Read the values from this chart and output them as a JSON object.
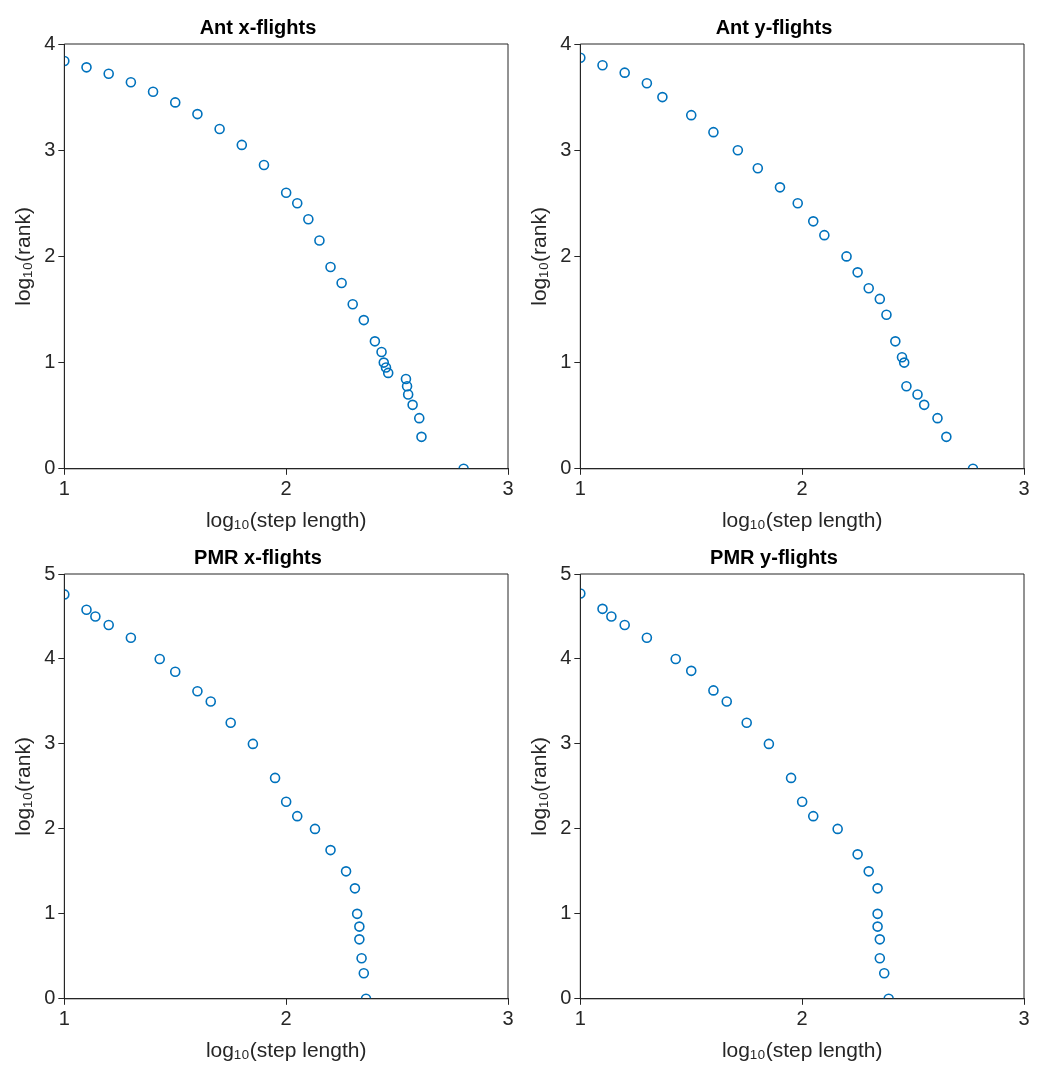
{
  "chart_data": [
    {
      "type": "scatter",
      "title": "Ant x-flights",
      "xlabel": "log₁₀(step length)",
      "ylabel": "log₁₀(rank)",
      "xlim": [
        1,
        3
      ],
      "xticks": [
        1,
        2,
        3
      ],
      "ylim": [
        0,
        4
      ],
      "yticks": [
        0,
        1,
        2,
        3,
        4
      ],
      "grid": false,
      "legend": false,
      "marker": "circle",
      "series": [
        {
          "color": "#0072bd",
          "x": [
            1.0,
            1.1,
            1.2,
            1.3,
            1.4,
            1.5,
            1.6,
            1.7,
            1.8,
            1.9,
            2.0,
            2.05,
            2.1,
            2.15,
            2.2,
            2.25,
            2.3,
            2.35,
            2.4,
            2.43,
            2.44,
            2.45,
            2.46,
            2.54,
            2.545,
            2.55,
            2.57,
            2.6,
            2.61,
            2.8
          ],
          "values": [
            3.84,
            3.78,
            3.72,
            3.64,
            3.55,
            3.45,
            3.34,
            3.2,
            3.05,
            2.86,
            2.6,
            2.5,
            2.35,
            2.15,
            1.9,
            1.75,
            1.55,
            1.4,
            1.2,
            1.1,
            1.0,
            0.954,
            0.903,
            0.845,
            0.778,
            0.699,
            0.602,
            0.477,
            0.301,
            0
          ]
        }
      ]
    },
    {
      "type": "scatter",
      "title": "Ant y-flights",
      "xlabel": "log₁₀(step length)",
      "ylabel": "log₁₀(rank)",
      "xlim": [
        1,
        3
      ],
      "xticks": [
        1,
        2,
        3
      ],
      "ylim": [
        0,
        4
      ],
      "yticks": [
        0,
        1,
        2,
        3,
        4
      ],
      "grid": false,
      "legend": false,
      "marker": "circle",
      "series": [
        {
          "color": "#0072bd",
          "x": [
            1.0,
            1.1,
            1.2,
            1.3,
            1.37,
            1.5,
            1.6,
            1.71,
            1.8,
            1.9,
            1.98,
            2.05,
            2.1,
            2.2,
            2.25,
            2.3,
            2.35,
            2.38,
            2.42,
            2.45,
            2.46,
            2.47,
            2.52,
            2.55,
            2.61,
            2.65,
            2.77
          ],
          "values": [
            3.87,
            3.8,
            3.73,
            3.63,
            3.5,
            3.33,
            3.17,
            3.0,
            2.83,
            2.65,
            2.5,
            2.33,
            2.2,
            2.0,
            1.85,
            1.7,
            1.6,
            1.45,
            1.2,
            1.05,
            1.0,
            0.778,
            0.699,
            0.602,
            0.477,
            0.301,
            0
          ]
        }
      ]
    },
    {
      "type": "scatter",
      "title": "PMR x-flights",
      "xlabel": "log₁₀(step length)",
      "ylabel": "log₁₀(rank)",
      "xlim": [
        1,
        3
      ],
      "xticks": [
        1,
        2,
        3
      ],
      "ylim": [
        0,
        5
      ],
      "yticks": [
        0,
        1,
        2,
        3,
        4,
        5
      ],
      "grid": false,
      "legend": false,
      "marker": "circle",
      "series": [
        {
          "color": "#0072bd",
          "x": [
            1.0,
            1.1,
            1.14,
            1.2,
            1.3,
            1.43,
            1.5,
            1.6,
            1.66,
            1.75,
            1.85,
            1.95,
            2.0,
            2.05,
            2.13,
            2.2,
            2.27,
            2.31,
            2.32,
            2.33,
            2.33,
            2.34,
            2.35,
            2.36
          ],
          "values": [
            4.76,
            4.58,
            4.5,
            4.4,
            4.25,
            4.0,
            3.85,
            3.62,
            3.5,
            3.25,
            3.0,
            2.6,
            2.32,
            2.15,
            2.0,
            1.75,
            1.5,
            1.3,
            1.0,
            0.85,
            0.7,
            0.477,
            0.301,
            0
          ]
        }
      ]
    },
    {
      "type": "scatter",
      "title": "PMR y-flights",
      "xlabel": "log₁₀(step length)",
      "ylabel": "log₁₀(rank)",
      "xlim": [
        1,
        3
      ],
      "xticks": [
        1,
        2,
        3
      ],
      "ylim": [
        0,
        5
      ],
      "yticks": [
        0,
        1,
        2,
        3,
        4,
        5
      ],
      "grid": false,
      "legend": false,
      "marker": "circle",
      "series": [
        {
          "color": "#0072bd",
          "x": [
            1.0,
            1.1,
            1.14,
            1.2,
            1.3,
            1.43,
            1.5,
            1.6,
            1.66,
            1.75,
            1.85,
            1.95,
            2.0,
            2.05,
            2.16,
            2.25,
            2.3,
            2.34,
            2.34,
            2.34,
            2.35,
            2.35,
            2.37,
            2.39
          ],
          "values": [
            4.77,
            4.59,
            4.5,
            4.4,
            4.25,
            4.0,
            3.86,
            3.63,
            3.5,
            3.25,
            3.0,
            2.6,
            2.32,
            2.15,
            2.0,
            1.7,
            1.5,
            1.3,
            1.0,
            0.85,
            0.7,
            0.477,
            0.301,
            0
          ]
        }
      ]
    }
  ]
}
